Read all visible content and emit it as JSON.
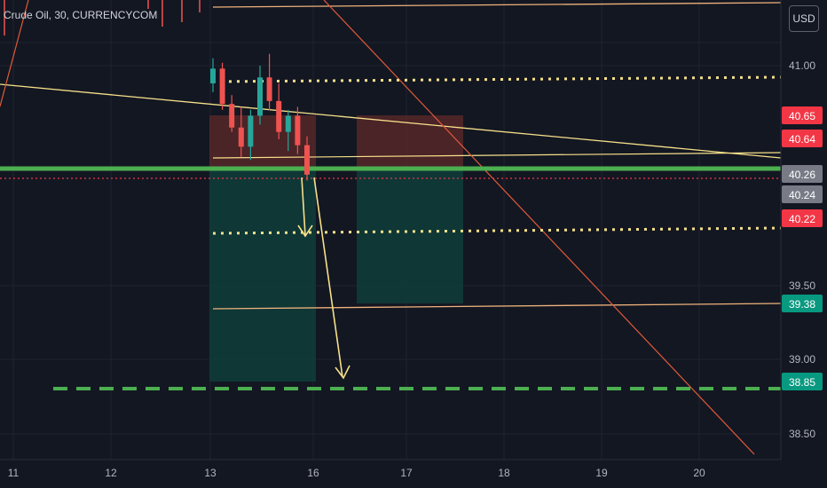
{
  "symbol": {
    "title": "Crude Oil, 30, CURRENCYCOM"
  },
  "currency_button": {
    "label": "USD"
  },
  "chart_data": {
    "type": "candlestick",
    "x_ticks": [
      "11",
      "12",
      "13",
      "16",
      "17",
      "18",
      "19",
      "20"
    ],
    "y_ticks": [
      "41.00",
      "39.50",
      "39.00",
      "38.50"
    ],
    "price_labels": [
      {
        "value": "40.65",
        "color": "#f23645"
      },
      {
        "value": "40.64",
        "color": "#f23645"
      },
      {
        "value": "40.26",
        "color": "#787b86"
      },
      {
        "value": "40.24",
        "color": "#787b86"
      },
      {
        "value": "40.22",
        "color": "#f23645"
      },
      {
        "value": "39.38",
        "color": "#089981"
      },
      {
        "value": "38.85",
        "color": "#089981"
      }
    ],
    "y_range": [
      38.4,
      41.4
    ],
    "support_level": 40.26,
    "take_profit_level": 38.85,
    "candles": [
      {
        "x": "13.0",
        "o": 40.88,
        "h": 41.05,
        "l": 40.82,
        "c": 40.98
      },
      {
        "x": "13.1",
        "o": 40.98,
        "h": 41.02,
        "l": 40.7,
        "c": 40.74
      },
      {
        "x": "13.2",
        "o": 40.74,
        "h": 40.8,
        "l": 40.55,
        "c": 40.58
      },
      {
        "x": "13.3",
        "o": 40.58,
        "h": 40.72,
        "l": 40.38,
        "c": 40.45
      },
      {
        "x": "13.4",
        "o": 40.45,
        "h": 40.7,
        "l": 40.36,
        "c": 40.66
      },
      {
        "x": "13.5",
        "o": 40.66,
        "h": 41.0,
        "l": 40.6,
        "c": 40.92
      },
      {
        "x": "13.6",
        "o": 40.92,
        "h": 41.08,
        "l": 40.7,
        "c": 40.76
      },
      {
        "x": "13.7",
        "o": 40.76,
        "h": 40.88,
        "l": 40.5,
        "c": 40.55
      },
      {
        "x": "13.8",
        "o": 40.55,
        "h": 40.7,
        "l": 40.42,
        "c": 40.66
      },
      {
        "x": "13.9",
        "o": 40.66,
        "h": 40.72,
        "l": 40.4,
        "c": 40.46
      },
      {
        "x": "16.0",
        "o": 40.46,
        "h": 40.52,
        "l": 40.22,
        "c": 40.26
      }
    ]
  },
  "colors": {
    "support_line": "#4caf50",
    "trend_lines": "#f7e08a",
    "resistance_line": "#f0b37c",
    "diagonal": "#e0593a",
    "up_candle": "#26a69a",
    "down_candle": "#ef5350",
    "loss_zone": "#5e2a2a",
    "profit_zone": "#0f3b39"
  }
}
